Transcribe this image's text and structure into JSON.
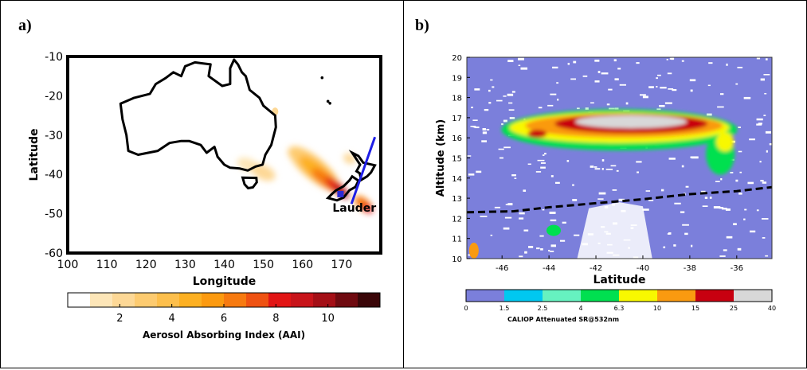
{
  "panel_a": {
    "label": "a)"
  },
  "panel_b": {
    "label": "b)"
  },
  "chart_data": [
    {
      "type": "heatmap",
      "panel": "a)",
      "xlabel": "Longitude",
      "ylabel": "Latitude",
      "xlim": [
        100,
        180
      ],
      "ylim": [
        -60,
        -10
      ],
      "x_ticks": [
        100,
        110,
        120,
        130,
        140,
        150,
        160,
        170
      ],
      "y_ticks": [
        -10,
        -20,
        -30,
        -40,
        -50,
        -60
      ],
      "annotation": "Lauder",
      "colorbar": {
        "label": "Aerosol Absorbing Index (AAI)",
        "ticks": [
          2,
          4,
          6,
          8,
          10
        ],
        "range": [
          0,
          12
        ],
        "colors": [
          "#ffffff",
          "#fde6b8",
          "#fdd896",
          "#fdcb70",
          "#fdbf4c",
          "#fdb022",
          "#fc9a10",
          "#f77a10",
          "#ef5212",
          "#e21515",
          "#c8141a",
          "#a40f16",
          "#6f0a10",
          "#3a0608"
        ]
      },
      "plume": [
        {
          "lon": 168,
          "lat": -43,
          "aai": 11
        },
        {
          "lon": 164,
          "lat": -40,
          "aai": 9
        },
        {
          "lon": 160,
          "lat": -36,
          "aai": 5
        },
        {
          "lon": 173,
          "lat": -47,
          "aai": 9
        },
        {
          "lon": 150,
          "lat": -39,
          "aai": 2
        },
        {
          "lon": 146,
          "lat": -37,
          "aai": 1.5
        }
      ],
      "site_marker": {
        "lon": 169.7,
        "lat": -45.0
      },
      "track": [
        {
          "lon": 172.5,
          "lat": -47.5
        },
        {
          "lon": 178.5,
          "lat": -30.5
        }
      ],
      "colors": {
        "coastline": "#000000",
        "track": "#1e1ee6",
        "site": "#2b2bd6"
      }
    },
    {
      "type": "heatmap",
      "panel": "b)",
      "xlabel": "Latitude",
      "ylabel": "Altitude (km)",
      "xlim": [
        -47.5,
        -34.5
      ],
      "ylim": [
        10,
        20
      ],
      "x_ticks": [
        -46,
        -44,
        -42,
        -40,
        -38,
        -36
      ],
      "y_ticks": [
        10,
        11,
        12,
        13,
        14,
        15,
        16,
        17,
        18,
        19,
        20
      ],
      "colorbar": {
        "label": "CALIOP Attenuated SR@532nm",
        "ticks": [
          "0",
          "1.5",
          "2.5",
          "4",
          "6.3",
          "10",
          "15",
          "25",
          "40"
        ],
        "colors": [
          "#7b7fdb",
          "#00c8f0",
          "#66f2c0",
          "#00e050",
          "#f8f800",
          "#fa9a10",
          "#c80010",
          "#d8d8d8"
        ]
      },
      "tropopause": [
        {
          "lat": -47.5,
          "alt": 12.3
        },
        {
          "lat": -45.5,
          "alt": 12.35
        },
        {
          "lat": -44,
          "alt": 12.55
        },
        {
          "lat": -42,
          "alt": 12.75
        },
        {
          "lat": -40,
          "alt": 12.95
        },
        {
          "lat": -38,
          "alt": 13.2
        },
        {
          "lat": -36,
          "alt": 13.35
        },
        {
          "lat": -34.5,
          "alt": 13.55
        }
      ],
      "plume_layer": {
        "lat_range": [
          -45.2,
          -37.1
        ],
        "alt_range": [
          15.3,
          17.5
        ],
        "max_sr": 40
      }
    }
  ]
}
